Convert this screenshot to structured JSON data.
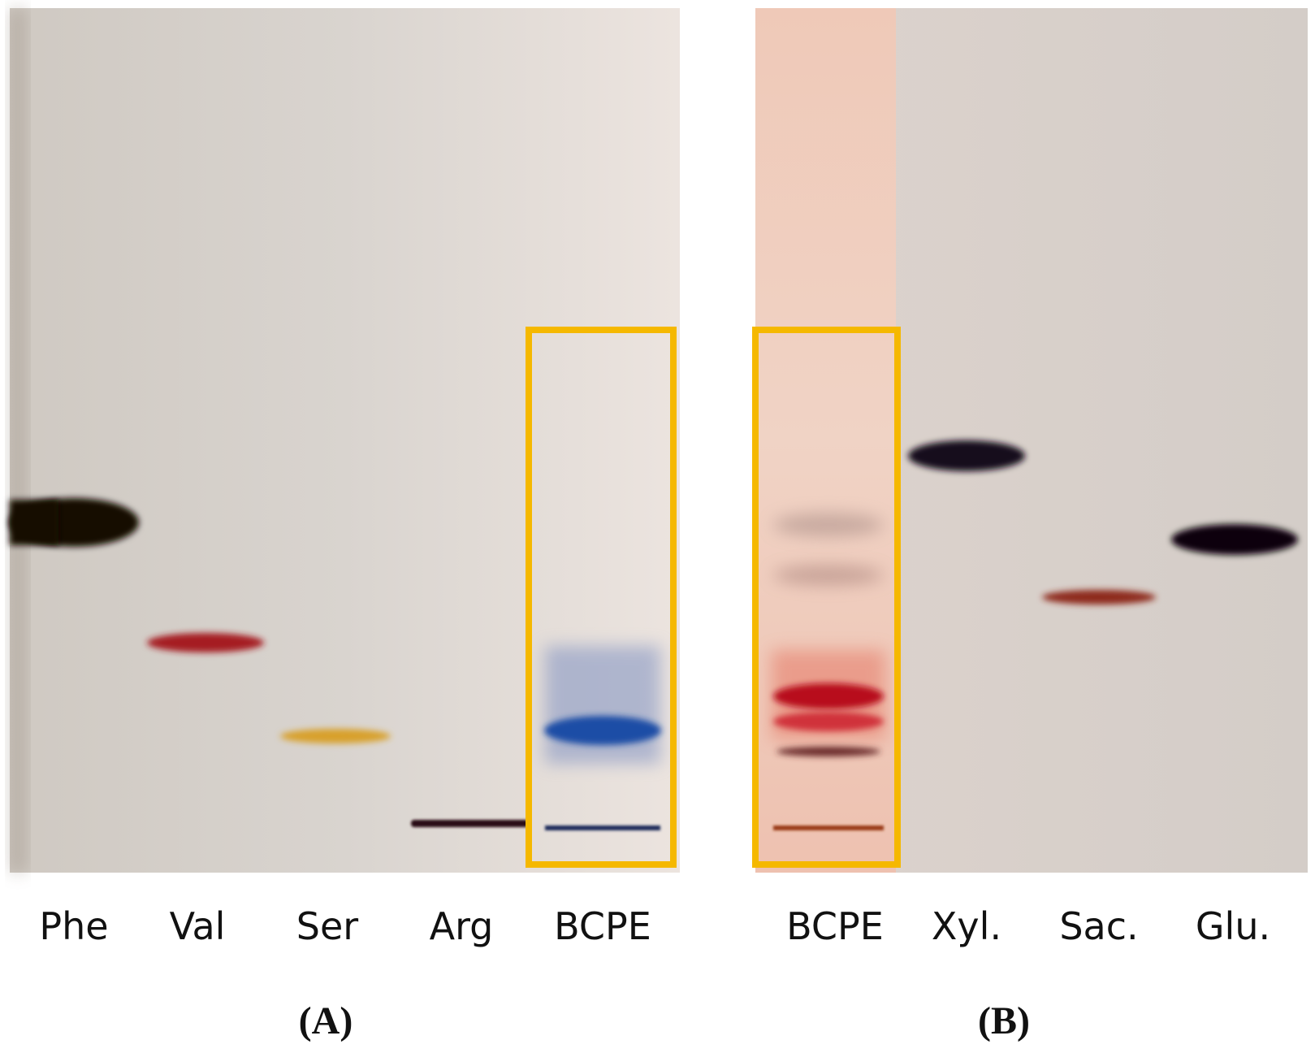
{
  "panels": [
    {
      "label": "(A)",
      "lanes": [
        "Phe",
        "Val",
        "Ser",
        "Arg",
        "BCPE"
      ]
    },
    {
      "label": "(B)",
      "lanes": [
        "BCPE",
        "Xyl.",
        "Sac.",
        "Glu."
      ]
    }
  ]
}
